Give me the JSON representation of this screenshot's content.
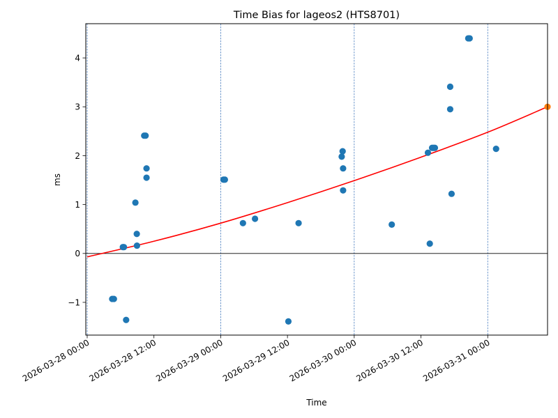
{
  "chart_data": {
    "type": "scatter",
    "title": "Time Bias for lageos2 (HTS8701)",
    "xlabel": "Time",
    "ylabel": "ms",
    "xlim": [
      "2026-03-27 23:45",
      "2026-03-31 10:45"
    ],
    "ylim": [
      -1.67,
      4.7
    ],
    "x_ticks": [
      "2026-03-28 00:00",
      "2026-03-28 12:00",
      "2026-03-29 00:00",
      "2026-03-29 12:00",
      "2026-03-30 00:00",
      "2026-03-30 12:00",
      "2026-03-31 00:00"
    ],
    "y_ticks": [
      -1,
      0,
      1,
      2,
      3,
      4
    ],
    "daily_gridlines": [
      "2026-03-28 00:00",
      "2026-03-29 00:00",
      "2026-03-30 00:00",
      "2026-03-31 00:00"
    ],
    "zero_line": true,
    "colors": {
      "points": "#1f77b4",
      "fit": "#ff0000",
      "highlight": "#ff7f0e",
      "gridline": "#4a7ebf"
    },
    "series": [
      {
        "kind": "points",
        "points": [
          {
            "x": "2026-03-28 04:30",
            "y": -0.93
          },
          {
            "x": "2026-03-28 04:48",
            "y": -0.93
          },
          {
            "x": "2026-03-28 06:25",
            "y": 0.13
          },
          {
            "x": "2026-03-28 06:36",
            "y": 0.13
          },
          {
            "x": "2026-03-28 07:00",
            "y": -1.36
          },
          {
            "x": "2026-03-28 08:40",
            "y": 1.04
          },
          {
            "x": "2026-03-28 08:55",
            "y": 0.4
          },
          {
            "x": "2026-03-28 08:57",
            "y": 0.16
          },
          {
            "x": "2026-03-28 10:15",
            "y": 2.41
          },
          {
            "x": "2026-03-28 10:30",
            "y": 2.41
          },
          {
            "x": "2026-03-28 10:40",
            "y": 1.74
          },
          {
            "x": "2026-03-28 10:40",
            "y": 1.55
          },
          {
            "x": "2026-03-29 00:30",
            "y": 1.51
          },
          {
            "x": "2026-03-29 00:45",
            "y": 1.51
          },
          {
            "x": "2026-03-29 04:00",
            "y": 0.62
          },
          {
            "x": "2026-03-29 06:10",
            "y": 0.71
          },
          {
            "x": "2026-03-29 12:10",
            "y": -1.39
          },
          {
            "x": "2026-03-29 14:00",
            "y": 0.62
          },
          {
            "x": "2026-03-29 21:45",
            "y": 1.98
          },
          {
            "x": "2026-03-29 21:55",
            "y": 2.09
          },
          {
            "x": "2026-03-29 22:00",
            "y": 1.74
          },
          {
            "x": "2026-03-29 22:00",
            "y": 1.29
          },
          {
            "x": "2026-03-30 06:45",
            "y": 0.59
          },
          {
            "x": "2026-03-30 13:15",
            "y": 2.06
          },
          {
            "x": "2026-03-30 13:35",
            "y": 0.2
          },
          {
            "x": "2026-03-30 14:00",
            "y": 2.16
          },
          {
            "x": "2026-03-30 14:15",
            "y": 2.16
          },
          {
            "x": "2026-03-30 14:30",
            "y": 2.16
          },
          {
            "x": "2026-03-30 17:15",
            "y": 2.95
          },
          {
            "x": "2026-03-30 17:15",
            "y": 3.41
          },
          {
            "x": "2026-03-30 17:30",
            "y": 1.22
          },
          {
            "x": "2026-03-30 20:30",
            "y": 4.4
          },
          {
            "x": "2026-03-30 20:45",
            "y": 4.4
          },
          {
            "x": "2026-03-31 01:30",
            "y": 2.14
          }
        ]
      },
      {
        "kind": "fit",
        "points": [
          {
            "x": "2026-03-28 00:00",
            "y": -0.07
          },
          {
            "x": "2026-03-28 12:00",
            "y": 0.25
          },
          {
            "x": "2026-03-29 00:00",
            "y": 0.62
          },
          {
            "x": "2026-03-29 12:00",
            "y": 1.04
          },
          {
            "x": "2026-03-30 00:00",
            "y": 1.49
          },
          {
            "x": "2026-03-30 12:00",
            "y": 1.97
          },
          {
            "x": "2026-03-31 00:00",
            "y": 2.48
          },
          {
            "x": "2026-03-31 10:45",
            "y": 3.0
          }
        ]
      },
      {
        "kind": "highlight",
        "points": [
          {
            "x": "2026-03-31 10:45",
            "y": 3.0
          }
        ]
      }
    ]
  }
}
